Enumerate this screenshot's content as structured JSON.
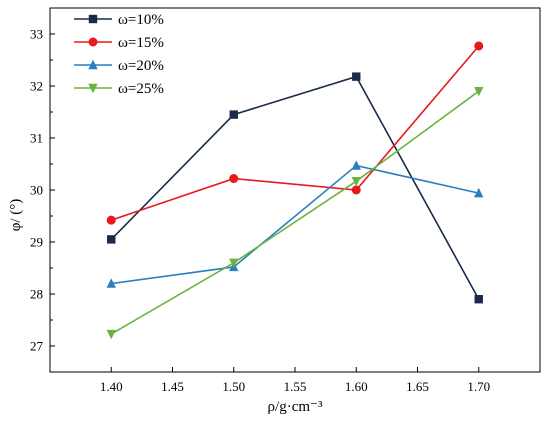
{
  "chart_data": {
    "type": "line",
    "xlabel": "ρ/g·cm⁻³",
    "ylabel": "φ/ (°)",
    "x": [
      1.4,
      1.5,
      1.6,
      1.7
    ],
    "xlim": [
      1.35,
      1.75
    ],
    "ylim": [
      26.5,
      33.5
    ],
    "xticks": [
      "1.40",
      "1.45",
      "1.50",
      "1.55",
      "1.60",
      "1.65",
      "1.70"
    ],
    "yticks": [
      "27",
      "28",
      "29",
      "30",
      "31",
      "32",
      "33"
    ],
    "grid": false,
    "legend_position": "top-left",
    "series": [
      {
        "name": "ω=10%",
        "values": [
          29.05,
          31.45,
          32.18,
          27.9
        ],
        "color": "#1a2a4a",
        "marker": "square"
      },
      {
        "name": "ω=15%",
        "values": [
          29.42,
          30.22,
          30.0,
          32.77
        ],
        "color": "#e8191e",
        "marker": "circle"
      },
      {
        "name": "ω=20%",
        "values": [
          28.2,
          28.52,
          30.47,
          29.94
        ],
        "color": "#2a7fbf",
        "marker": "triangle-up"
      },
      {
        "name": "ω=25%",
        "values": [
          27.23,
          28.6,
          30.17,
          31.9
        ],
        "color": "#6ab33f",
        "marker": "triangle-down"
      }
    ]
  }
}
